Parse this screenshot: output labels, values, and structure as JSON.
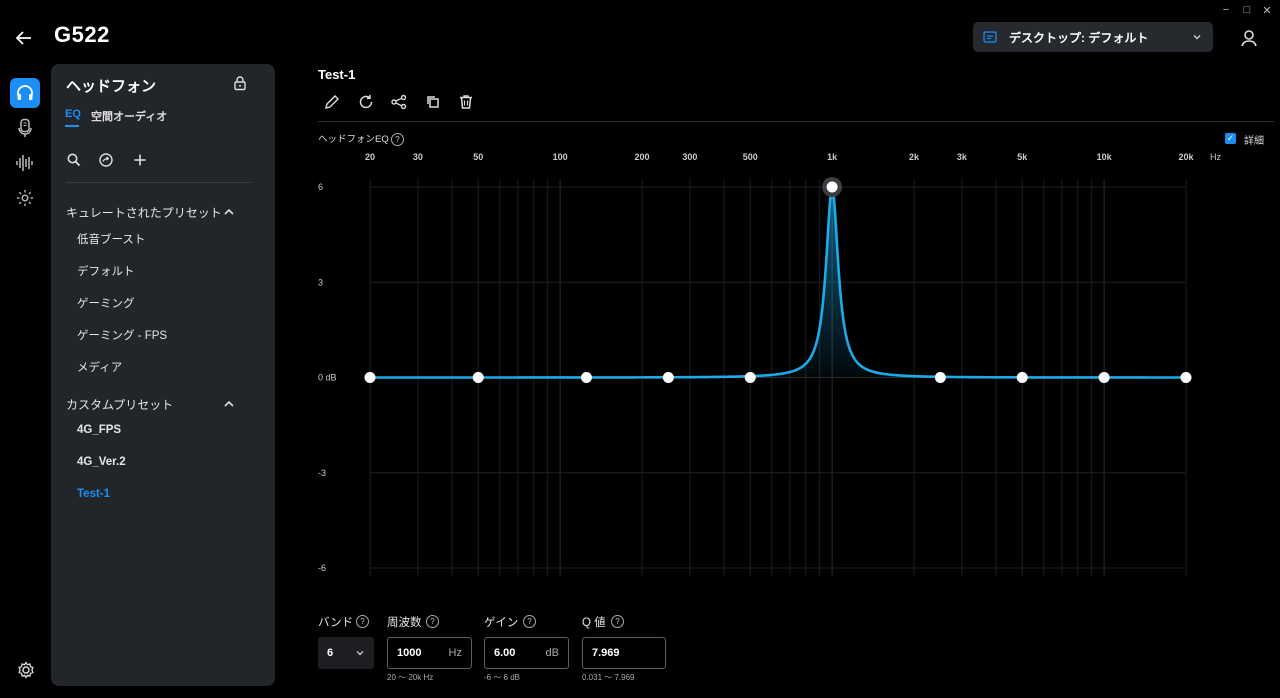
{
  "window": {
    "minimize": "−",
    "maximize": "□",
    "close": "✕"
  },
  "header": {
    "back_icon": "arrow-left-icon",
    "device_name": "G522",
    "profile_label": "デスクトップ: デフォルト",
    "user_icon": "person-icon"
  },
  "rail": {
    "items": [
      {
        "icon": "headphones-icon",
        "active": true
      },
      {
        "icon": "microphone-icon",
        "active": false
      },
      {
        "icon": "sound-wave-icon",
        "active": false
      },
      {
        "icon": "lighting-icon",
        "active": false
      }
    ],
    "settings_icon": "gear-icon"
  },
  "side_panel": {
    "title": "ヘッドフォン",
    "tabs": [
      {
        "label": "EQ",
        "active": true
      },
      {
        "label": "空間オーディオ",
        "active": false
      }
    ],
    "tools": [
      "search-icon",
      "sync-icon",
      "plus-icon"
    ],
    "sections": [
      {
        "title": "キュレートされたプリセット",
        "items": [
          "低音ブースト",
          "デフォルト",
          "ゲーミング",
          "ゲーミング - FPS",
          "メディア"
        ]
      },
      {
        "title": "カスタムプリセット",
        "items": [
          "4G_FPS",
          "4G_Ver.2",
          "Test-1"
        ],
        "active": "Test-1"
      }
    ]
  },
  "main": {
    "preset_name": "Test-1",
    "actions": [
      "edit-icon",
      "reset-icon",
      "share-icon",
      "duplicate-icon",
      "delete-icon"
    ],
    "eq_label": "ヘッドフォンEQ",
    "detail_label": "詳細",
    "detail_checked": true,
    "fields": {
      "band": {
        "label": "バンド",
        "value": "6"
      },
      "frequency": {
        "label": "周波数",
        "value": "1000",
        "unit": "Hz",
        "range": "20 ～ 20k Hz"
      },
      "gain": {
        "label": "ゲイン",
        "value": "6.00",
        "unit": "dB",
        "range": "-6 ～ 6 dB"
      },
      "q": {
        "label": "Q 値",
        "value": "7.969",
        "range": "0.031 ～ 7.969"
      }
    }
  },
  "chart_data": {
    "type": "line",
    "x_scale": "log",
    "x_unit": "Hz",
    "x_ticks": [
      {
        "value": 20,
        "label": "20"
      },
      {
        "value": 30,
        "label": "30"
      },
      {
        "value": 50,
        "label": "50"
      },
      {
        "value": 100,
        "label": "100"
      },
      {
        "value": 200,
        "label": "200"
      },
      {
        "value": 300,
        "label": "300"
      },
      {
        "value": 500,
        "label": "500"
      },
      {
        "value": 1000,
        "label": "1k"
      },
      {
        "value": 2000,
        "label": "2k"
      },
      {
        "value": 3000,
        "label": "3k"
      },
      {
        "value": 5000,
        "label": "5k"
      },
      {
        "value": 10000,
        "label": "10k"
      },
      {
        "value": 20000,
        "label": "20k"
      }
    ],
    "y_ticks": [
      {
        "value": 6,
        "label": "6"
      },
      {
        "value": 3,
        "label": "3"
      },
      {
        "value": 0,
        "label": "0 dB"
      },
      {
        "value": -3,
        "label": "-3"
      },
      {
        "value": -6,
        "label": "-6"
      }
    ],
    "xlim": [
      20,
      20000
    ],
    "ylim": [
      -6,
      6
    ],
    "bands": [
      {
        "freq": 20,
        "gain": 0
      },
      {
        "freq": 50,
        "gain": 0
      },
      {
        "freq": 125,
        "gain": 0
      },
      {
        "freq": 250,
        "gain": 0
      },
      {
        "freq": 500,
        "gain": 0
      },
      {
        "freq": 1000,
        "gain": 6,
        "q": 7.969,
        "selected": true
      },
      {
        "freq": 2500,
        "gain": 0
      },
      {
        "freq": 5000,
        "gain": 0
      },
      {
        "freq": 10000,
        "gain": 0
      },
      {
        "freq": 20000,
        "gain": 0
      }
    ],
    "color": "#1fa9e8",
    "grid": true
  }
}
